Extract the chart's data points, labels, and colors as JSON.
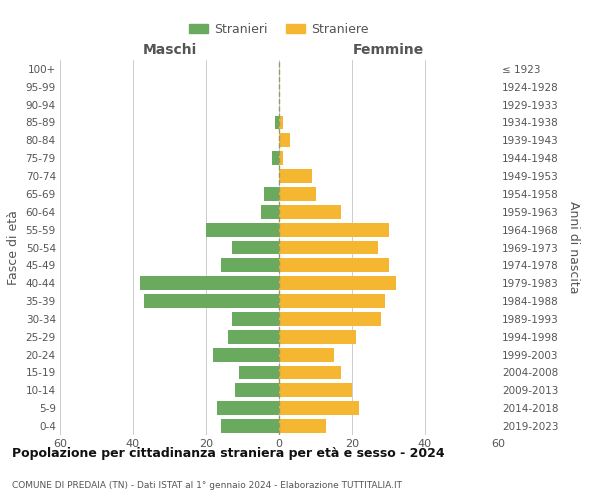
{
  "age_groups": [
    "0-4",
    "5-9",
    "10-14",
    "15-19",
    "20-24",
    "25-29",
    "30-34",
    "35-39",
    "40-44",
    "45-49",
    "50-54",
    "55-59",
    "60-64",
    "65-69",
    "70-74",
    "75-79",
    "80-84",
    "85-89",
    "90-94",
    "95-99",
    "100+"
  ],
  "birth_years": [
    "2019-2023",
    "2014-2018",
    "2009-2013",
    "2004-2008",
    "1999-2003",
    "1994-1998",
    "1989-1993",
    "1984-1988",
    "1979-1983",
    "1974-1978",
    "1969-1973",
    "1964-1968",
    "1959-1963",
    "1954-1958",
    "1949-1953",
    "1944-1948",
    "1939-1943",
    "1934-1938",
    "1929-1933",
    "1924-1928",
    "≤ 1923"
  ],
  "males": [
    16,
    17,
    12,
    11,
    18,
    14,
    13,
    37,
    38,
    16,
    13,
    20,
    5,
    4,
    0,
    2,
    0,
    1,
    0,
    0,
    0
  ],
  "females": [
    13,
    22,
    20,
    17,
    15,
    21,
    28,
    29,
    32,
    30,
    27,
    30,
    17,
    10,
    9,
    1,
    3,
    1,
    0,
    0,
    0
  ],
  "male_color": "#6aaa5e",
  "female_color": "#f5b731",
  "title": "Popolazione per cittadinanza straniera per età e sesso - 2024",
  "subtitle": "COMUNE DI PREDAIA (TN) - Dati ISTAT al 1° gennaio 2024 - Elaborazione TUTTITALIA.IT",
  "left_label": "Maschi",
  "right_label": "Femmine",
  "ylabel_left": "Fasce di età",
  "ylabel_right": "Anni di nascita",
  "legend_male": "Stranieri",
  "legend_female": "Straniere",
  "xlim": 60,
  "background_color": "#ffffff",
  "grid_color": "#cccccc",
  "dashed_line_color": "#999966"
}
